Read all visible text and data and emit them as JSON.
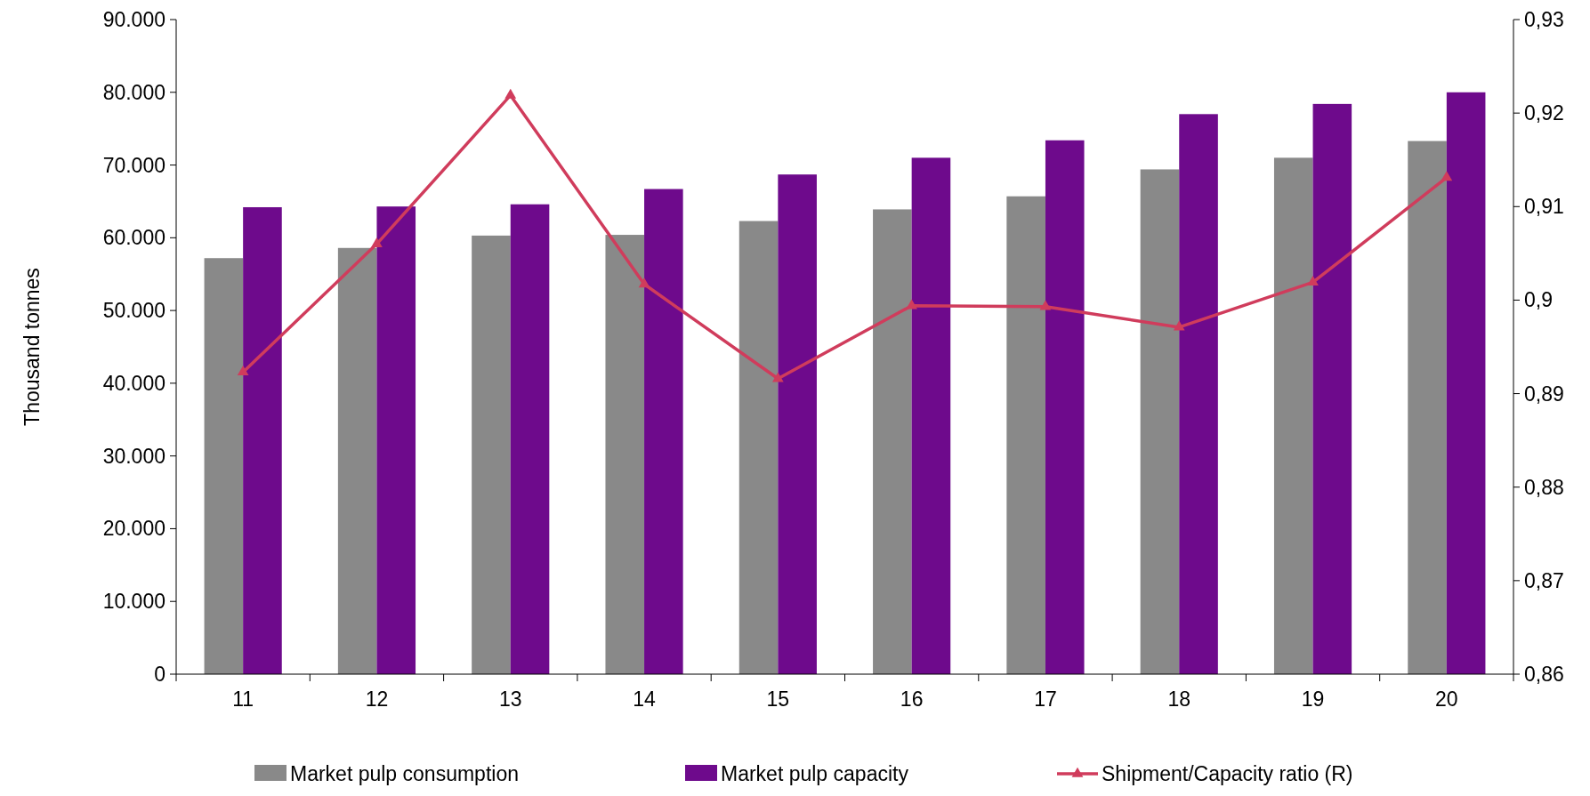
{
  "chart_data": {
    "type": "bar",
    "ylabel": "Thousand tonnes",
    "categories": [
      "11",
      "12",
      "13",
      "14",
      "15",
      "16",
      "17",
      "18",
      "19",
      "20"
    ],
    "series": [
      {
        "name": "Market pulp consumption",
        "color": "#898989",
        "values": [
          57200,
          58600,
          60300,
          60400,
          62300,
          63900,
          65700,
          69400,
          71000,
          73300
        ]
      },
      {
        "name": "Market pulp capacity",
        "color": "#6e0a8c",
        "values": [
          64200,
          64300,
          64600,
          66700,
          68700,
          71000,
          73400,
          77000,
          78400,
          80000
        ]
      },
      {
        "name": "Shipment/Capacity ratio (R)",
        "type": "line",
        "axis": "y2",
        "marker": "triangle",
        "color": "#d03c5c",
        "values": [
          0.8923,
          0.906,
          0.9219,
          0.9017,
          0.8916,
          0.8994,
          0.8993,
          0.8971,
          0.9019,
          0.9131
        ]
      }
    ],
    "ylim": [
      0,
      90000
    ],
    "yticks": [
      {
        "value": 0,
        "label": "0"
      },
      {
        "value": 10000,
        "label": "10.000"
      },
      {
        "value": 20000,
        "label": "20.000"
      },
      {
        "value": 30000,
        "label": "30.000"
      },
      {
        "value": 40000,
        "label": "40.000"
      },
      {
        "value": 50000,
        "label": "50.000"
      },
      {
        "value": 60000,
        "label": "60.000"
      },
      {
        "value": 70000,
        "label": "70.000"
      },
      {
        "value": 80000,
        "label": "80.000"
      },
      {
        "value": 90000,
        "label": "90.000"
      }
    ],
    "y2lim": [
      0.86,
      0.93
    ],
    "y2ticks": [
      {
        "value": 0.86,
        "label": "0,86"
      },
      {
        "value": 0.87,
        "label": "0,87"
      },
      {
        "value": 0.88,
        "label": "0,88"
      },
      {
        "value": 0.89,
        "label": "0,89"
      },
      {
        "value": 0.9,
        "label": "0,9"
      },
      {
        "value": 0.91,
        "label": "0,91"
      },
      {
        "value": 0.92,
        "label": "0,92"
      },
      {
        "value": 0.93,
        "label": "0,93"
      }
    ],
    "legend": "bottom"
  }
}
